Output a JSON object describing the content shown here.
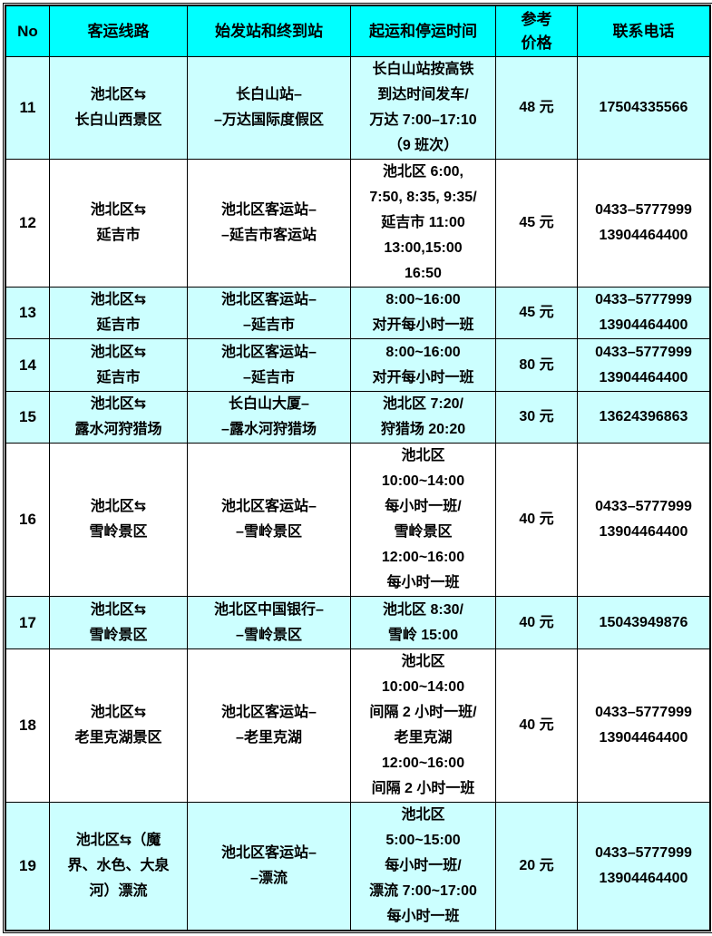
{
  "colors": {
    "header_bg": "#00FFFF",
    "row_bg_cyan": "#CCFFFF",
    "row_bg_white": "#FFFFFF"
  },
  "headers": [
    "No",
    "客运线路",
    "始发站和终到站",
    "起运和停运时间",
    "参考\n价格",
    "联系电话"
  ],
  "rows": [
    {
      "no": "11",
      "route": "池北区⇆\n长白山西景区",
      "stations": "长白山站–\n–万达国际度假区",
      "times": "长白山站按高铁\n到达时间发车/\n万达 7:00–17:10\n（9 班次）",
      "price": "48 元",
      "phone": "17504335566",
      "bg": "c"
    },
    {
      "no": "12",
      "route": "池北区⇆\n延吉市",
      "stations": "池北区客运站–\n–延吉市客运站",
      "times": "池北区 6:00,\n7:50, 8:35, 9:35/\n延吉市 11:00\n13:00,15:00\n16:50",
      "price": "45 元",
      "phone": "0433–5777999\n13904464400",
      "bg": "w"
    },
    {
      "no": "13",
      "route": "池北区⇆\n延吉市",
      "stations": "池北区客运站–\n–延吉市",
      "times": "8:00~16:00\n对开每小时一班",
      "price": "45 元",
      "phone": "0433–5777999\n13904464400",
      "bg": "c"
    },
    {
      "no": "14",
      "route": "池北区⇆\n延吉市",
      "stations": "池北区客运站–\n–延吉市",
      "times": "8:00~16:00\n对开每小时一班",
      "price": "80 元",
      "phone": "0433–5777999\n13904464400",
      "bg": "c"
    },
    {
      "no": "15",
      "route": "池北区⇆\n露水河狩猎场",
      "stations": "长白山大厦–\n–露水河狩猎场",
      "times": "池北区 7:20/\n狩猎场 20:20",
      "price": "30 元",
      "phone": "13624396863",
      "bg": "c"
    },
    {
      "no": "16",
      "route": "池北区⇆\n雪岭景区",
      "stations": "池北区客运站–\n–雪岭景区",
      "times": "池北区\n10:00~14:00\n每小时一班/\n雪岭景区\n12:00~16:00\n每小时一班",
      "price": "40 元",
      "phone": "0433–5777999\n13904464400",
      "bg": "w"
    },
    {
      "no": "17",
      "route": "池北区⇆\n雪岭景区",
      "stations": "池北区中国银行–\n–雪岭景区",
      "times": "池北区 8:30/\n雪岭 15:00",
      "price": "40 元",
      "phone": "15043949876",
      "bg": "c"
    },
    {
      "no": "18",
      "route": "池北区⇆\n老里克湖景区",
      "stations": "池北区客运站–\n–老里克湖",
      "times": "池北区\n10:00~14:00\n间隔 2 小时一班/\n老里克湖\n12:00~16:00\n间隔 2 小时一班",
      "price": "40 元",
      "phone": "0433–5777999\n13904464400",
      "bg": "w"
    },
    {
      "no": "19",
      "route": "池北区⇆（魔\n界、水色、大泉\n河）漂流",
      "stations": "池北区客运站–\n–漂流",
      "times": "池北区\n5:00~15:00\n每小时一班/\n漂流 7:00~17:00\n每小时一班",
      "price": "20 元",
      "phone": "0433–5777999\n13904464400",
      "bg": "c"
    }
  ]
}
